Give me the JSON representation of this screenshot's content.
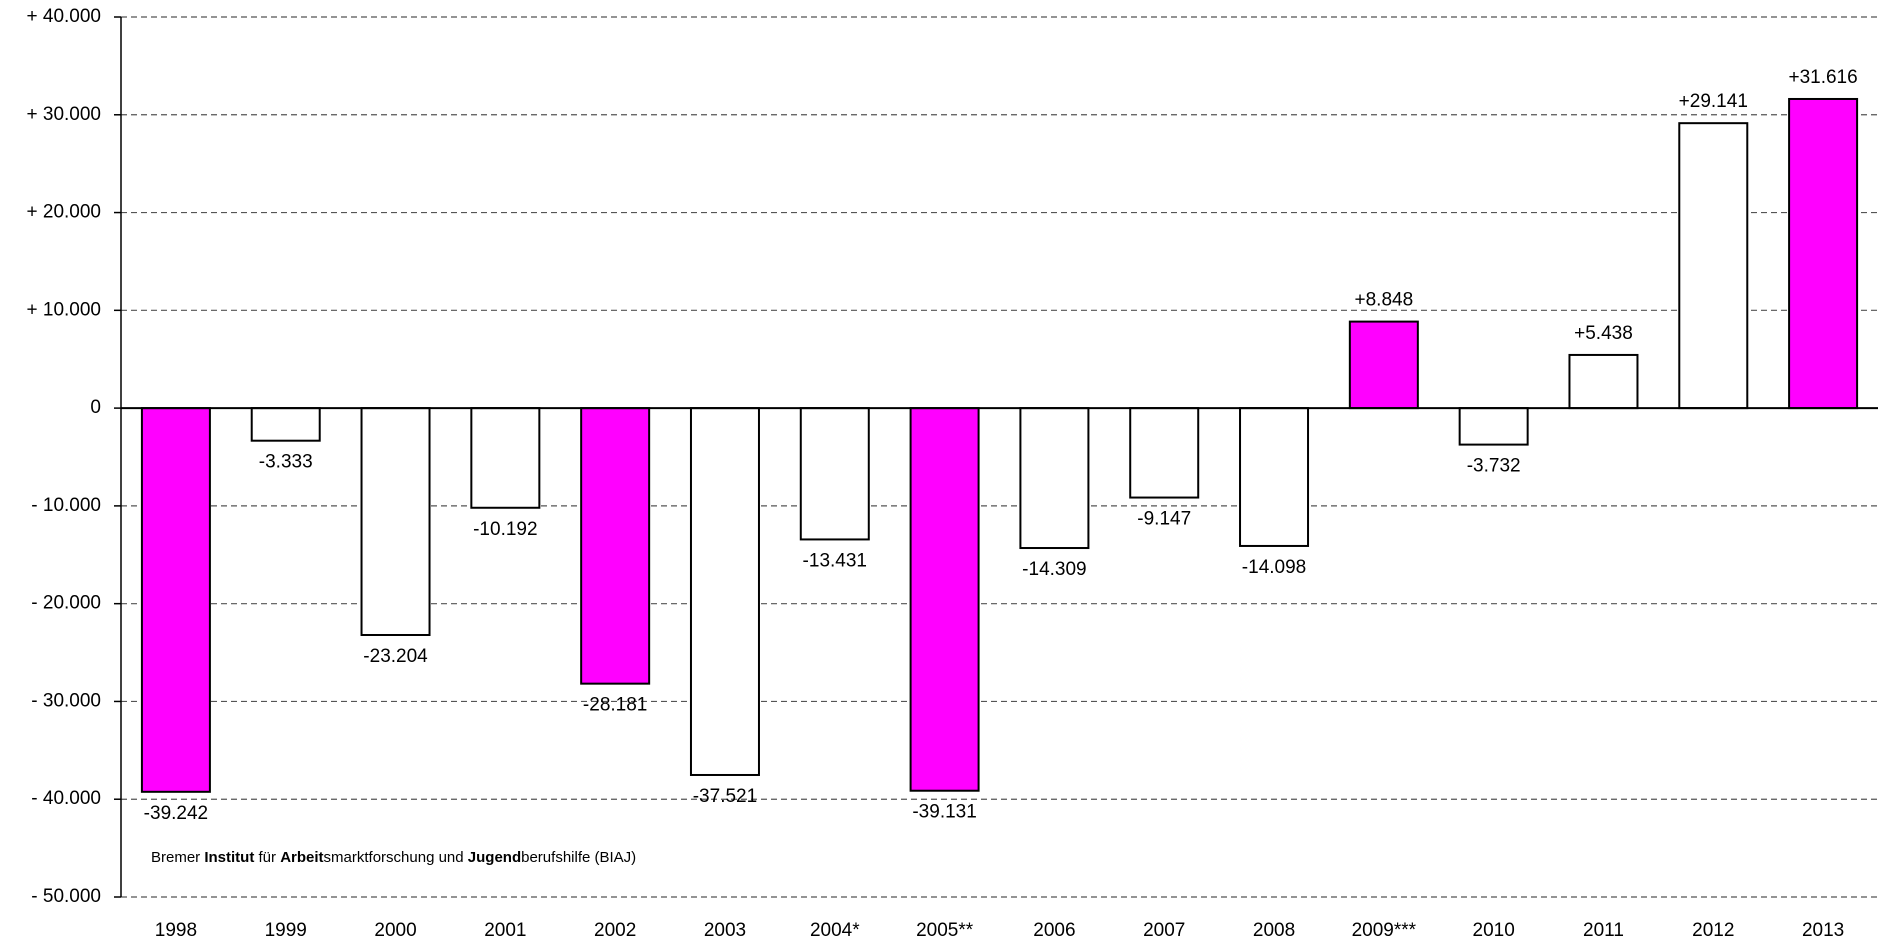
{
  "chart_data": {
    "type": "bar",
    "categories": [
      "1998",
      "1999",
      "2000",
      "2001",
      "2002",
      "2003",
      "2004*",
      "2005**",
      "2006",
      "2007",
      "2008",
      "2009***",
      "2010",
      "2011",
      "2012",
      "2013"
    ],
    "values": [
      -39242,
      -3333,
      -23204,
      -10192,
      -28181,
      -37521,
      -13431,
      -39131,
      -14309,
      -9147,
      -14098,
      8848,
      -3732,
      5438,
      29141,
      31616
    ],
    "value_labels": [
      "-39.242",
      "-3.333",
      "-23.204",
      "-10.192",
      "-28.181",
      "-37.521",
      "-13.431",
      "-39.131",
      "-14.309",
      "-9.147",
      "-14.098",
      "+8.848",
      "-3.732",
      "+5.438",
      "+29.141",
      "+31.616"
    ],
    "colors": [
      "#ff00ff",
      "#ffffff",
      "#ffffff",
      "#ffffff",
      "#ff00ff",
      "#ffffff",
      "#ffffff",
      "#ff00ff",
      "#ffffff",
      "#ffffff",
      "#ffffff",
      "#ff00ff",
      "#ffffff",
      "#ffffff",
      "#ffffff",
      "#ff00ff"
    ],
    "ylim": [
      -50000,
      40000
    ],
    "yticks": [
      {
        "value": 40000,
        "label": "+ 40.000"
      },
      {
        "value": 30000,
        "label": "+ 30.000"
      },
      {
        "value": 20000,
        "label": "+ 20.000"
      },
      {
        "value": 10000,
        "label": "+ 10.000"
      },
      0,
      {
        "value": -10000,
        "label": "- 10.000"
      },
      {
        "value": -20000,
        "label": "- 20.000"
      },
      {
        "value": -30000,
        "label": "- 30.000"
      },
      {
        "value": -40000,
        "label": "- 40.000"
      },
      {
        "value": -50000,
        "label": "- 50.000"
      }
    ],
    "grid": true,
    "note": [
      "Bremer ",
      "Institut",
      " für ",
      "Arbeit",
      "smarktforschung und ",
      "Jugend",
      "berufshilfe (BIAJ)"
    ]
  }
}
